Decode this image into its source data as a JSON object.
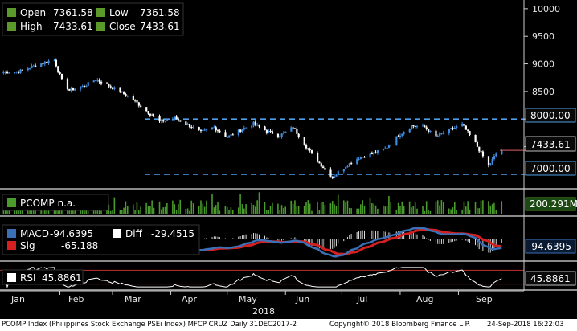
{
  "ohlc_box": {
    "open_label": "Open",
    "open_value": "7361.58",
    "low_label": "Low",
    "low_value": "7361.58",
    "high_label": "High",
    "high_value": "7433.61",
    "close_label": "Close",
    "close_value": "7433.61"
  },
  "price_badges": {
    "upper_line": "8000.00",
    "last": "7433.61",
    "lower_line": "7000.00"
  },
  "volume_panel": {
    "legend": "PCOMP n.a.",
    "badge": "200.291M"
  },
  "macd_panel": {
    "macd_label": "MACD",
    "macd_value": "-94.6395",
    "diff_label": "Diff",
    "diff_value": "-29.4515",
    "sig_label": "Sig",
    "sig_value": "-65.188",
    "badge": "-94.6395"
  },
  "rsi_panel": {
    "label": "RSI",
    "value": "45.8861",
    "badge": "45.8861"
  },
  "x_axis": {
    "months": [
      "Jan",
      "Feb",
      "Mar",
      "Apr",
      "May",
      "Jun",
      "Jul",
      "Aug",
      "Sep"
    ],
    "year": "2018"
  },
  "footer": {
    "left": "PCOMP Index (Philippines Stock Exchange PSEi Index) MFCP CRUZ  Daily 31DEC2017-2",
    "center": "Copyright© 2018 Bloomberg Finance L.P.",
    "right": "24-Sep-2018 16:22:03"
  },
  "colors": {
    "up": "#3f8bdf",
    "down": "#ffffff",
    "ohlc_green": "#5b9a2a",
    "dash_line": "#4f9de8",
    "macd": "#3b6fb6",
    "sig": "#d42020",
    "rsi": "#ffffff",
    "rsi_band": "#c03030",
    "vol": "#4a9a2c",
    "badge_bg": "#0a0a0a",
    "last_line": "#e06060"
  },
  "chart_data": {
    "type": "candlestick",
    "title": "PCOMP Index",
    "y_ticks": [
      7000,
      7500,
      8000,
      8500,
      9000,
      9500,
      10000
    ],
    "ylim": [
      6780,
      10100
    ],
    "horizontal_lines": [
      8000,
      7000
    ],
    "last_close": 7433.61,
    "x_months": [
      "Jan",
      "Feb",
      "Mar",
      "Apr",
      "May",
      "Jun",
      "Jul",
      "Aug",
      "Sep"
    ],
    "close_path": [
      [
        "2018-01-02",
        8850
      ],
      [
        "2018-01-10",
        8860
      ],
      [
        "2018-01-18",
        8960
      ],
      [
        "2018-01-26",
        9050
      ],
      [
        "2018-01-29",
        9070
      ],
      [
        "2018-02-02",
        8700
      ],
      [
        "2018-02-06",
        8520
      ],
      [
        "2018-02-14",
        8600
      ],
      [
        "2018-02-20",
        8720
      ],
      [
        "2018-02-26",
        8620
      ],
      [
        "2018-03-05",
        8500
      ],
      [
        "2018-03-12",
        8350
      ],
      [
        "2018-03-19",
        8150
      ],
      [
        "2018-03-26",
        7950
      ],
      [
        "2018-04-03",
        8020
      ],
      [
        "2018-04-10",
        7900
      ],
      [
        "2018-04-17",
        7760
      ],
      [
        "2018-04-24",
        7850
      ],
      [
        "2018-05-01",
        7670
      ],
      [
        "2018-05-08",
        7800
      ],
      [
        "2018-05-15",
        7920
      ],
      [
        "2018-05-22",
        7780
      ],
      [
        "2018-05-29",
        7700
      ],
      [
        "2018-06-05",
        7850
      ],
      [
        "2018-06-12",
        7500
      ],
      [
        "2018-06-19",
        7200
      ],
      [
        "2018-06-26",
        6950
      ],
      [
        "2018-07-03",
        7150
      ],
      [
        "2018-07-10",
        7300
      ],
      [
        "2018-07-17",
        7370
      ],
      [
        "2018-07-24",
        7460
      ],
      [
        "2018-07-31",
        7700
      ],
      [
        "2018-08-07",
        7880
      ],
      [
        "2018-08-14",
        7850
      ],
      [
        "2018-08-20",
        7680
      ],
      [
        "2018-08-27",
        7800
      ],
      [
        "2018-09-03",
        7900
      ],
      [
        "2018-09-10",
        7560
      ],
      [
        "2018-09-17",
        7150
      ],
      [
        "2018-09-21",
        7370
      ],
      [
        "2018-09-24",
        7433.61
      ]
    ],
    "volume_last": "200.291M",
    "macd_last": -94.6395,
    "macd_diff_last": -29.4515,
    "macd_signal_last": -65.188,
    "rsi_last": 45.8861,
    "rsi_band": [
      30,
      70
    ]
  }
}
